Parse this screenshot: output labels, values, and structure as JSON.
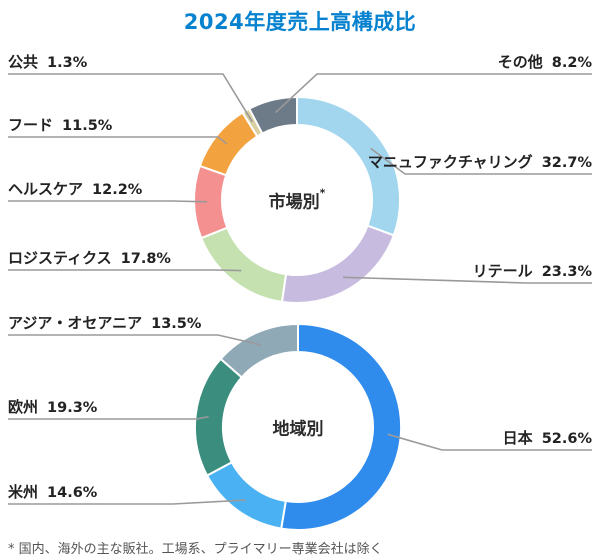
{
  "title": "2024年度売上高構成比",
  "footnote": "* 国内、海外の主な販社。工場系、プライマリー専業会社は除く",
  "styles": {
    "title_color": "#0682cf",
    "leader_color": "#9a9a9a",
    "label_color": "#222222",
    "background": "#ffffff"
  },
  "chart_data": [
    {
      "type": "donut",
      "title": "市場別",
      "title_note": "*",
      "unit": "%",
      "legend_position": "callout-labels",
      "segments": [
        {
          "label": "マニュファクチャリング",
          "value": 32.7,
          "pct": "32.7%",
          "color": "#a2d6ee"
        },
        {
          "label": "リテール",
          "value": 23.3,
          "pct": "23.3%",
          "color": "#c7bcdf"
        },
        {
          "label": "ロジスティクス",
          "value": 17.8,
          "pct": "17.8%",
          "color": "#c5e1af"
        },
        {
          "label": "ヘルスケア",
          "value": 12.2,
          "pct": "12.2%",
          "color": "#f59090"
        },
        {
          "label": "フード",
          "value": 11.5,
          "pct": "11.5%",
          "color": "#f2a340"
        },
        {
          "label": "公共",
          "value": 1.3,
          "pct": "1.3%",
          "color": "#d8cfa3"
        },
        {
          "label": "その他",
          "value": 8.2,
          "pct": "8.2%",
          "color": "#6d7a88"
        }
      ]
    },
    {
      "type": "donut",
      "title": "地域別",
      "title_note": "",
      "unit": "%",
      "legend_position": "callout-labels",
      "segments": [
        {
          "label": "日本",
          "value": 52.6,
          "pct": "52.6%",
          "color": "#2f8bec"
        },
        {
          "label": "米州",
          "value": 14.6,
          "pct": "14.6%",
          "color": "#4ab2f3"
        },
        {
          "label": "欧州",
          "value": 19.3,
          "pct": "19.3%",
          "color": "#3b8e7e"
        },
        {
          "label": "アジア・オセアニア",
          "value": 13.5,
          "pct": "13.5%",
          "color": "#8fa9b7"
        }
      ]
    }
  ]
}
